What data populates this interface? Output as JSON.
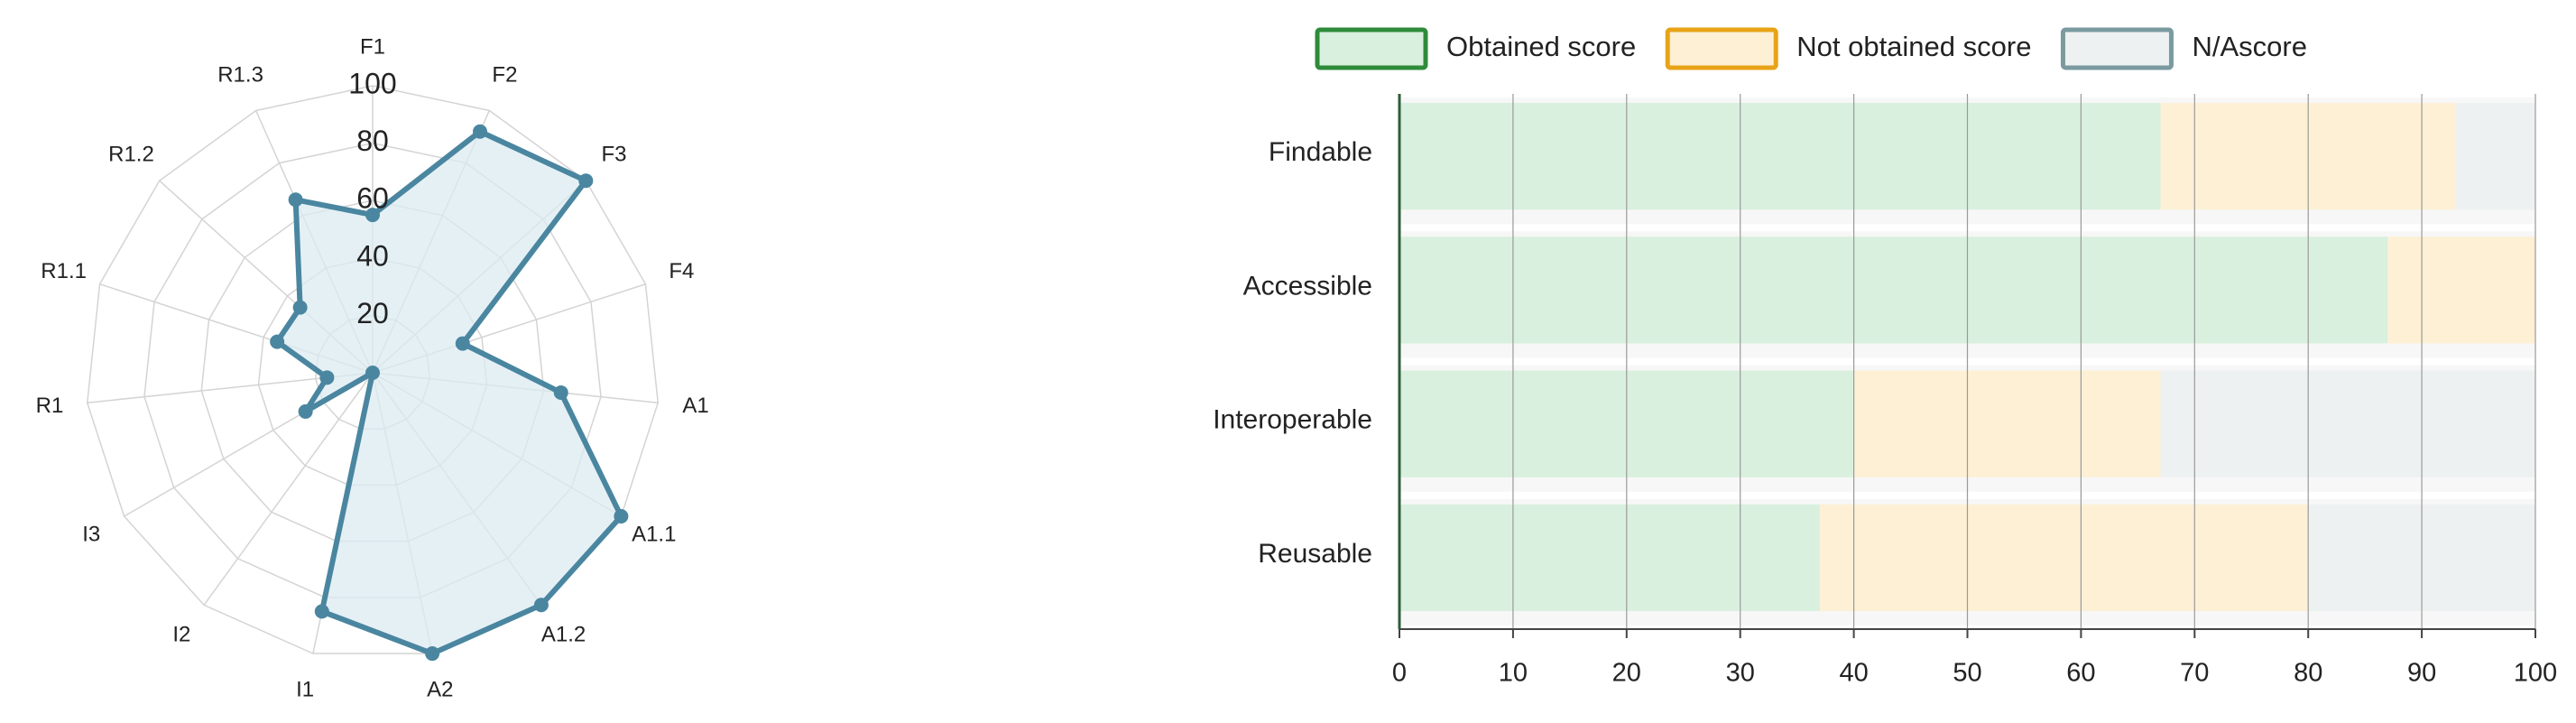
{
  "chart_data": [
    {
      "type": "radar",
      "categories": [
        "F1",
        "F2",
        "F3",
        "F4",
        "A1",
        "A1.1",
        "A1.2",
        "A2",
        "I1",
        "I2",
        "I3",
        "R1",
        "R1.1",
        "R1.2",
        "R1.3"
      ],
      "values": [
        55,
        92,
        100,
        33,
        66,
        100,
        100,
        100,
        85,
        0,
        27,
        16,
        35,
        34,
        66
      ],
      "color": "#4a86a0",
      "fill": "#dcebf1",
      "rlim": [
        0,
        100
      ],
      "rticks": [
        20,
        40,
        60,
        80,
        100
      ],
      "grid": true
    },
    {
      "type": "stacked-barh",
      "categories": [
        "Findable",
        "Accessible",
        "Interoperable",
        "Reusable"
      ],
      "series": [
        {
          "name": "Obtained score",
          "color": "#2e8b3a",
          "fill": "#d9f0de",
          "values": [
            67,
            87,
            40,
            37
          ]
        },
        {
          "name": "Not obtained score",
          "color": "#e8a317",
          "fill": "#fdf0d5",
          "values": [
            26,
            13,
            27,
            43
          ]
        },
        {
          "name": "N/Ascore",
          "color": "#7a9aa0",
          "fill": "#eef1f1",
          "values": [
            7,
            0,
            33,
            20
          ]
        }
      ],
      "xlim": [
        0,
        100
      ],
      "xticks": [
        0,
        10,
        20,
        30,
        40,
        50,
        60,
        70,
        80,
        90,
        100
      ],
      "grid": true,
      "legend": "top"
    }
  ]
}
